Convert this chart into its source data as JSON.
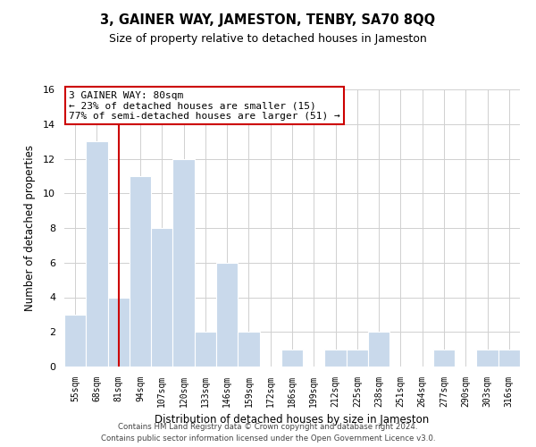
{
  "title": "3, GAINER WAY, JAMESTON, TENBY, SA70 8QQ",
  "subtitle": "Size of property relative to detached houses in Jameston",
  "xlabel": "Distribution of detached houses by size in Jameston",
  "ylabel": "Number of detached properties",
  "bin_labels": [
    "55sqm",
    "68sqm",
    "81sqm",
    "94sqm",
    "107sqm",
    "120sqm",
    "133sqm",
    "146sqm",
    "159sqm",
    "172sqm",
    "186sqm",
    "199sqm",
    "212sqm",
    "225sqm",
    "238sqm",
    "251sqm",
    "264sqm",
    "277sqm",
    "290sqm",
    "303sqm",
    "316sqm"
  ],
  "bar_heights": [
    3,
    13,
    4,
    11,
    8,
    12,
    2,
    6,
    2,
    0,
    1,
    0,
    1,
    1,
    2,
    0,
    0,
    1,
    0,
    1,
    1
  ],
  "bar_color": "#c9d9eb",
  "subject_bar_index": 2,
  "subject_line_color": "#cc0000",
  "annotation_line1": "3 GAINER WAY: 80sqm",
  "annotation_line2": "← 23% of detached houses are smaller (15)",
  "annotation_line3": "77% of semi-detached houses are larger (51) →",
  "annotation_box_color": "#ffffff",
  "annotation_box_edge": "#cc0000",
  "ylim": [
    0,
    16
  ],
  "yticks": [
    0,
    2,
    4,
    6,
    8,
    10,
    12,
    14,
    16
  ],
  "footer_line1": "Contains HM Land Registry data © Crown copyright and database right 2024.",
  "footer_line2": "Contains public sector information licensed under the Open Government Licence v3.0.",
  "background_color": "#ffffff",
  "grid_color": "#d0d0d0"
}
